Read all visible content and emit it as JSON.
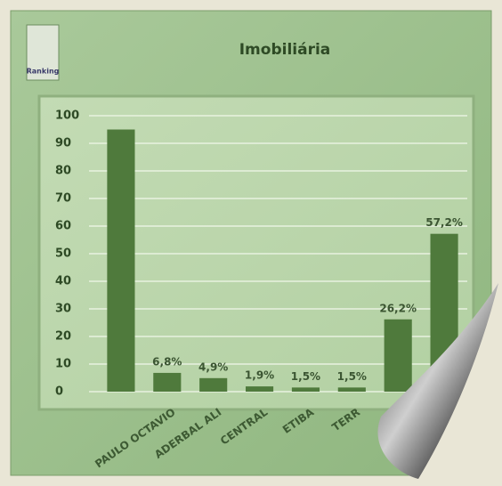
{
  "chart_data": {
    "type": "bar",
    "title": "Imobiliária",
    "logo": "Ranking",
    "categories": [
      null,
      "PAULO OCTAVIO",
      "ADERBAL ALI",
      "CENTRAL",
      "ETIBA",
      "TERR",
      null,
      null
    ],
    "values": [
      95,
      6.8,
      4.9,
      1.9,
      1.5,
      1.5,
      26.2,
      57.2
    ],
    "value_labels": [
      null,
      "6,8%",
      "4,9%",
      "1,9%",
      "1,5%",
      "1,5%",
      "26,2%",
      "57,2%"
    ],
    "color": "#4f7a3c",
    "ylim": [
      0,
      100
    ],
    "yticks": [
      0,
      10,
      20,
      30,
      40,
      50,
      60,
      70,
      80,
      90,
      100
    ],
    "grid": true
  }
}
